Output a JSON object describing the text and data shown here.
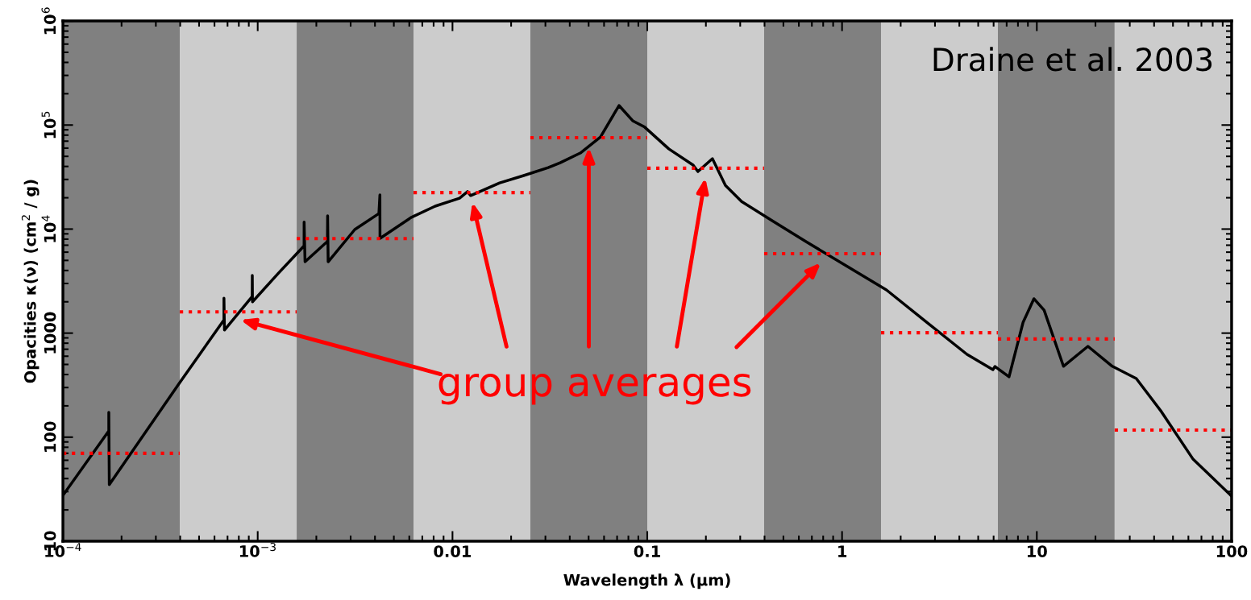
{
  "chart_data": {
    "type": "line",
    "xlabel": "Wavelength λ (μm)",
    "ylabel": "Opacities κ(ν) (cm$^{2}$ / g)",
    "log": "xy",
    "grid": false,
    "legend": false,
    "xlim": [
      0.0001,
      100
    ],
    "ylim": [
      10,
      1000000
    ],
    "xticks": [
      {
        "value": 0.0001,
        "label": "10$^{−4}$"
      },
      {
        "value": 0.001,
        "label": "10$^{−3}$"
      },
      0.01,
      0.1,
      1,
      10,
      100
    ],
    "yticks": [
      10,
      100,
      1000,
      {
        "value": 10000,
        "label": "10$^{4}$"
      },
      {
        "value": 100000,
        "label": "10$^{5}$"
      },
      {
        "value": 1000000,
        "label": "10$^{6}$"
      }
    ],
    "bands": [
      {
        "axis": "x",
        "from": 0.0001,
        "to": 0.000398,
        "color": "#808080"
      },
      {
        "axis": "x",
        "from": 0.000398,
        "to": 0.001585,
        "color": "#cccccc"
      },
      {
        "axis": "x",
        "from": 0.001585,
        "to": 0.00631,
        "color": "#808080"
      },
      {
        "axis": "x",
        "from": 0.00631,
        "to": 0.0251,
        "color": "#cccccc"
      },
      {
        "axis": "x",
        "from": 0.0251,
        "to": 0.1,
        "color": "#808080"
      },
      {
        "axis": "x",
        "from": 0.1,
        "to": 0.398,
        "color": "#cccccc"
      },
      {
        "axis": "x",
        "from": 0.398,
        "to": 1.585,
        "color": "#808080"
      },
      {
        "axis": "x",
        "from": 1.585,
        "to": 6.31,
        "color": "#cccccc"
      },
      {
        "axis": "x",
        "from": 6.31,
        "to": 25.1,
        "color": "#808080"
      },
      {
        "axis": "x",
        "from": 25.1,
        "to": 100,
        "color": "#cccccc"
      }
    ],
    "series": [
      {
        "color": "#000000",
        "line_style": "solid",
        "x": [
          0.0001,
          0.000172,
          0.000172,
          0.000173,
          0.000398,
          0.000671,
          0.000671,
          0.000675,
          0.000937,
          0.000938,
          0.00094,
          0.00127,
          0.00173,
          0.001731,
          0.00175,
          0.00228,
          0.002285,
          0.0023,
          0.00315,
          0.00419,
          0.00424,
          0.004245,
          0.00612,
          0.00815,
          0.01087,
          0.01195,
          0.0124,
          0.01746,
          0.0232,
          0.031,
          0.0357,
          0.0453,
          0.0575,
          0.0716,
          0.0842,
          0.097,
          0.129,
          0.172,
          0.182,
          0.216,
          0.252,
          0.305,
          0.446,
          0.653,
          1.05,
          1.69,
          2.72,
          4.38,
          5.95,
          6.1,
          7.2,
          8.5,
          9.66,
          10.9,
          13.7,
          18.3,
          24.4,
          32.4,
          43.2,
          63.2,
          100
        ],
        "values": [
          27.6,
          115,
          173,
          35,
          335,
          1340,
          2170,
          1070,
          2250,
          3580,
          2000,
          3720,
          6900,
          11700,
          4850,
          7600,
          13400,
          4850,
          9900,
          14100,
          21300,
          8130,
          12900,
          16600,
          19800,
          22900,
          21000,
          27800,
          32700,
          39000,
          43400,
          53800,
          76700,
          154000,
          110000,
          95500,
          59000,
          41200,
          35700,
          47500,
          26300,
          18400,
          11800,
          7580,
          4440,
          2600,
          1270,
          625,
          446,
          478,
          380,
          1270,
          2140,
          1660,
          480,
          747,
          480,
          366,
          180,
          62,
          27.1
        ]
      },
      {
        "color": "#ff0000",
        "line_style": "dotted",
        "x": [
          0.0001,
          0.000398
        ],
        "values": [
          70,
          70
        ]
      },
      {
        "color": "#ff0000",
        "line_style": "dotted",
        "x": [
          0.000398,
          0.001585
        ],
        "values": [
          1600,
          1600
        ]
      },
      {
        "color": "#ff0000",
        "line_style": "dotted",
        "x": [
          0.001585,
          0.00631
        ],
        "values": [
          8100,
          8100
        ]
      },
      {
        "color": "#ff0000",
        "line_style": "dotted",
        "x": [
          0.00631,
          0.0251
        ],
        "values": [
          22400,
          22400
        ]
      },
      {
        "color": "#ff0000",
        "line_style": "dotted",
        "x": [
          0.0251,
          0.1
        ],
        "values": [
          75500,
          75500
        ]
      },
      {
        "color": "#ff0000",
        "line_style": "dotted",
        "x": [
          0.1,
          0.398
        ],
        "values": [
          38400,
          38400
        ]
      },
      {
        "color": "#ff0000",
        "line_style": "dotted",
        "x": [
          0.398,
          1.585
        ],
        "values": [
          5800,
          5800
        ]
      },
      {
        "color": "#ff0000",
        "line_style": "dotted",
        "x": [
          1.585,
          6.31
        ],
        "values": [
          1010,
          1010
        ]
      },
      {
        "color": "#ff0000",
        "line_style": "dotted",
        "x": [
          6.31,
          25.1
        ],
        "values": [
          880,
          880
        ]
      },
      {
        "color": "#ff0000",
        "line_style": "dotted",
        "x": [
          25.1,
          100
        ],
        "values": [
          117,
          117
        ]
      }
    ],
    "annotations": [
      "Draine et al. 2003",
      "group averages"
    ]
  }
}
